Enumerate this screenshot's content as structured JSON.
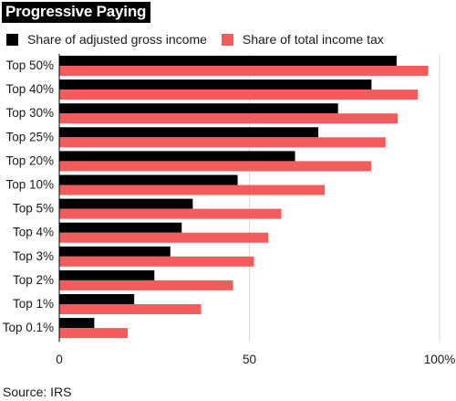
{
  "chart_data": {
    "type": "bar",
    "orientation": "horizontal",
    "title": "Progressive Paying",
    "categories": [
      "Top 50%",
      "Top 40%",
      "Top 30%",
      "Top 25%",
      "Top 20%",
      "Top 10%",
      "Top 5%",
      "Top 4%",
      "Top 3%",
      "Top 2%",
      "Top 1%",
      "Top 0.1%"
    ],
    "series": [
      {
        "name": "Share of adjusted gross income",
        "color": "#000000",
        "values": [
          88.7,
          82.1,
          73.3,
          68.1,
          62.0,
          46.9,
          35.1,
          32.2,
          29.2,
          25.0,
          19.7,
          9.2
        ]
      },
      {
        "name": "Share of total income tax",
        "color": "#f25c5c",
        "values": [
          97.0,
          94.3,
          89.0,
          85.8,
          82.0,
          69.8,
          58.4,
          55.0,
          51.2,
          45.7,
          37.3,
          18.0
        ]
      }
    ],
    "xlim": [
      0,
      100
    ],
    "xticks": [
      {
        "value": 0,
        "label": "0"
      },
      {
        "value": 50,
        "label": "50"
      },
      {
        "value": 100,
        "label": "100%"
      }
    ],
    "grid": true,
    "legend_position": "top-left",
    "source": "Source: IRS"
  }
}
